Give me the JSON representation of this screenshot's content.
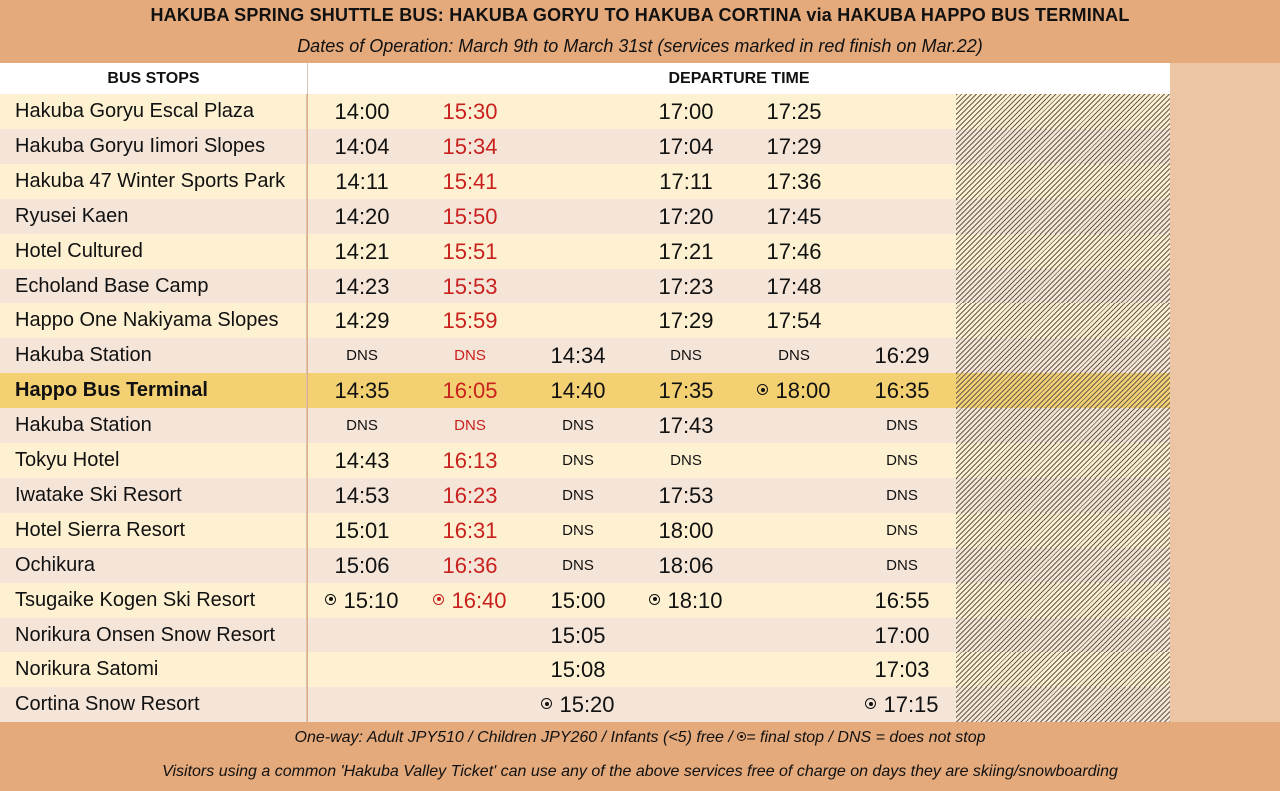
{
  "title": "HAKUBA SPRING SHUTTLE BUS: HAKUBA GORYU TO HAKUBA CORTINA via HAKUBA HAPPO BUS TERMINAL",
  "subtitle": "Dates of Operation: March 9th to March 31st (services marked in red finish on Mar.22)",
  "header": {
    "stops": "BUS STOPS",
    "departure": "DEPARTURE TIME"
  },
  "colors": {
    "background": "#e4aa7c",
    "row_light": "#fdf1d1",
    "row_pink": "#f5e4d8",
    "highlight_row": "#f3d071",
    "red_service": "#c9211e"
  },
  "red_columns": [
    1
  ],
  "rows": [
    {
      "stop": "Hakuba Goryu Escal Plaza",
      "times": [
        "14:00",
        "15:30",
        null,
        "17:00",
        "17:25",
        null
      ]
    },
    {
      "stop": "Hakuba Goryu Iimori Slopes",
      "times": [
        "14:04",
        "15:34",
        null,
        "17:04",
        "17:29",
        null
      ]
    },
    {
      "stop": "Hakuba 47 Winter Sports Park",
      "times": [
        "14:11",
        "15:41",
        null,
        "17:11",
        "17:36",
        null
      ]
    },
    {
      "stop": "Ryusei Kaen",
      "times": [
        "14:20",
        "15:50",
        null,
        "17:20",
        "17:45",
        null
      ]
    },
    {
      "stop": "Hotel Cultured",
      "times": [
        "14:21",
        "15:51",
        null,
        "17:21",
        "17:46",
        null
      ]
    },
    {
      "stop": "Echoland Base Camp",
      "times": [
        "14:23",
        "15:53",
        null,
        "17:23",
        "17:48",
        null
      ]
    },
    {
      "stop": "Happo One Nakiyama Slopes",
      "times": [
        "14:29",
        "15:59",
        null,
        "17:29",
        "17:54",
        null
      ]
    },
    {
      "stop": "Hakuba Station",
      "times": [
        "DNS",
        "DNS",
        "14:34",
        "DNS",
        "DNS",
        "16:29"
      ]
    },
    {
      "stop": "Happo Bus Terminal",
      "highlight": true,
      "times": [
        "14:35",
        "16:05",
        "14:40",
        "17:35",
        "18:00",
        "16:35"
      ],
      "final": [
        4
      ]
    },
    {
      "stop": "Hakuba Station",
      "times": [
        "DNS",
        "DNS",
        "DNS",
        "17:43",
        null,
        "DNS"
      ]
    },
    {
      "stop": "Tokyu Hotel",
      "times": [
        "14:43",
        "16:13",
        "DNS",
        "DNS",
        null,
        "DNS"
      ]
    },
    {
      "stop": "Iwatake Ski Resort",
      "times": [
        "14:53",
        "16:23",
        "DNS",
        "17:53",
        null,
        "DNS"
      ]
    },
    {
      "stop": "Hotel Sierra Resort",
      "times": [
        "15:01",
        "16:31",
        "DNS",
        "18:00",
        null,
        "DNS"
      ]
    },
    {
      "stop": "Ochikura",
      "times": [
        "15:06",
        "16:36",
        "DNS",
        "18:06",
        null,
        "DNS"
      ]
    },
    {
      "stop": "Tsugaike Kogen Ski Resort",
      "times": [
        "15:10",
        "16:40",
        "15:00",
        "18:10",
        null,
        "16:55"
      ],
      "final": [
        0,
        1,
        3
      ]
    },
    {
      "stop": "Norikura Onsen Snow Resort",
      "times": [
        null,
        null,
        "15:05",
        null,
        null,
        "17:00"
      ]
    },
    {
      "stop": "Norikura Satomi",
      "times": [
        null,
        null,
        "15:08",
        null,
        null,
        "17:03"
      ]
    },
    {
      "stop": "Cortina Snow Resort",
      "times": [
        null,
        null,
        "15:20",
        null,
        null,
        "17:15"
      ],
      "final": [
        2,
        5
      ]
    }
  ],
  "footer": {
    "fares_before": "One-way: Adult JPY510 / Children JPY260 / Infants (<5) free / ",
    "fares_after": "= final stop / DNS = does not stop",
    "ticket_note": "Visitors using a common 'Hakuba Valley Ticket' can use any of the above services free of charge on days they are skiing/snowboarding"
  }
}
